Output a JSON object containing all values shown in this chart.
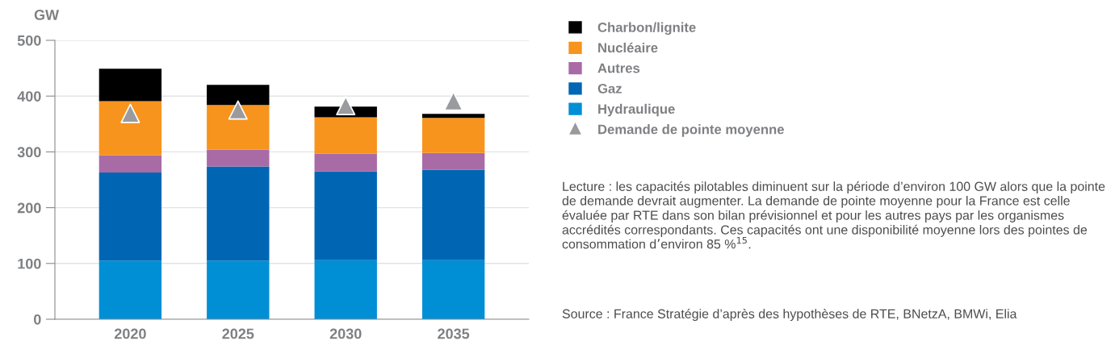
{
  "chart_data": {
    "type": "bar",
    "stacked": true,
    "ylabel": "GW",
    "categories": [
      "2020",
      "2025",
      "2030",
      "2035"
    ],
    "series": [
      {
        "name": "Hydraulique",
        "color": "#008fd5",
        "values": [
          105,
          105,
          106,
          106
        ]
      },
      {
        "name": "Gaz",
        "color": "#0066b3",
        "values": [
          158,
          169,
          159,
          162
        ]
      },
      {
        "name": "Autres",
        "color": "#a86ba6",
        "values": [
          31,
          30,
          32,
          30
        ]
      },
      {
        "name": "Nucléaire",
        "color": "#f7941d",
        "values": [
          97,
          80,
          65,
          63
        ]
      },
      {
        "name": "Charbon/lignite",
        "color": "#000000",
        "values": [
          58,
          36,
          19,
          7
        ]
      },
      {
        "name": "Demande de pointe moyenne",
        "type": "scatter",
        "marker": "triangle",
        "color": "#999b9e",
        "values": [
          369,
          375,
          383,
          391
        ]
      }
    ],
    "ylim": [
      0,
      500
    ],
    "yticks": [
      0,
      100,
      200,
      300,
      400,
      500
    ],
    "grid": "y",
    "legend": "right",
    "annotations": [
      "Lecture : les capacités pilotables diminuent sur la période d’environ 100 GW alors que la pointe de demande devrait augmenter. La demande de pointe moyenne pour la France est celle évaluée par RTE dans son bilan prévisionnel et pour les autres pays par les organismes accrédités correspondants. Ces capacités ont une disponibilité moyenne lors des pointes de consommation d’environ 85 %$^{15}$.",
      "Source : France Stratégie d’après des hypothèses de RTE, BNetzA, BMWi, Elia"
    ]
  }
}
